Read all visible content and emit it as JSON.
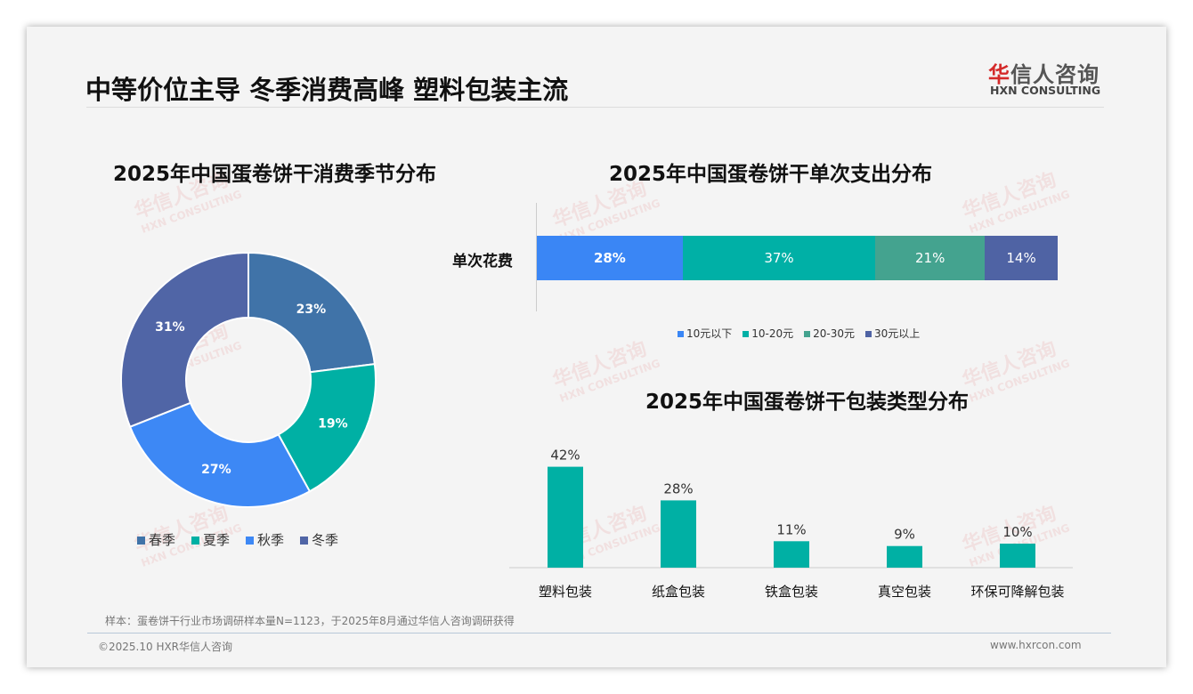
{
  "header": {
    "title": "中等价位主导 冬季消费高峰 塑料包装主流",
    "logo_cn_red": "华",
    "logo_cn": "信人咨询",
    "logo_en": "HXN CONSULTING"
  },
  "watermark": {
    "cn": "华信人咨询",
    "en": "HXN CONSULTING"
  },
  "chart_data": [
    {
      "type": "pie",
      "title": "2025年中国蛋卷饼干消费季节分布",
      "categories": [
        "春季",
        "夏季",
        "秋季",
        "冬季"
      ],
      "values": [
        23,
        19,
        27,
        31
      ],
      "labels": [
        "23%",
        "19%",
        "27%",
        "31%"
      ],
      "colors": [
        "#4073a8",
        "#00b0a4",
        "#3d88f5",
        "#5065a6"
      ],
      "legend": "bottom"
    },
    {
      "type": "bar",
      "stacked": true,
      "orientation": "horizontal",
      "title": "2025年中国蛋卷饼干单次支出分布",
      "categories": [
        "单次花费"
      ],
      "series": [
        {
          "name": "10元以下",
          "values": [
            28
          ],
          "label": "28%",
          "color": "#3a86f5"
        },
        {
          "name": "10-20元",
          "values": [
            37
          ],
          "label": "37%",
          "color": "#00b0a6"
        },
        {
          "name": "20-30元",
          "values": [
            21
          ],
          "label": "21%",
          "color": "#44a38f"
        },
        {
          "name": "30元以上",
          "values": [
            14
          ],
          "label": "14%",
          "color": "#4f63a4"
        }
      ],
      "legend": "bottom"
    },
    {
      "type": "bar",
      "title": "2025年中国蛋卷饼干包装类型分布",
      "categories": [
        "塑料包装",
        "纸盒包装",
        "铁盒包装",
        "真空包装",
        "环保可降解包装"
      ],
      "values": [
        42,
        28,
        11,
        9,
        10
      ],
      "labels": [
        "42%",
        "28%",
        "11%",
        "9%",
        "10%"
      ],
      "color": "#00b0a4",
      "ylim": [
        0,
        45
      ]
    }
  ],
  "footer": {
    "note": "样本：蛋卷饼干行业市场调研样本量N=1123，于2025年8月通过华信人咨询调研获得",
    "copyright": "©2025.10 HXR华信人咨询",
    "website": "www.hxrcon.com"
  }
}
